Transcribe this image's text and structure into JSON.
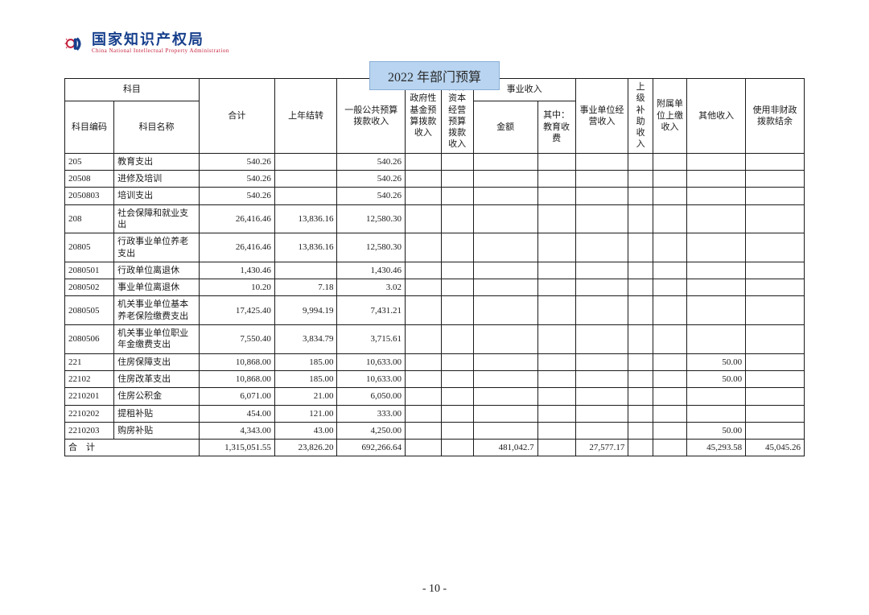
{
  "logo": {
    "cn": "国家知识产权局",
    "en": "China National Intellectual Property Administration",
    "accent_color": "#163f8c",
    "red": "#c41e3a"
  },
  "title": "2022 年部门预算",
  "page_number": "- 10 -",
  "header": {
    "kemu": "科目",
    "kemu_bianma": "科目编码",
    "kemu_mingcheng": "科目名称",
    "heji": "合计",
    "shangnian_jiezhuang": "上年结转",
    "yiban_gonggong": "一般公共预算拨款收入",
    "zhengfuxing": "政府性基金预算拨款收入",
    "guoyou_ziben": "国有资本经营预算拨款收入",
    "shiye_shouru": "事业收入",
    "jine": "金额",
    "qizhong_jiaoyu": "其中：教育收费",
    "shiye_danwei": "事业单位经营收入",
    "shangji_buzhu": "上级补助收入",
    "fushu_danwei": "附属单位上缴收入",
    "qita_shouru": "其他收入",
    "shiyong_feicaizheng": "使用非财政拨款结余"
  },
  "rows": [
    {
      "code": "205",
      "name": "教育支出",
      "heji": "540.26",
      "sn": "",
      "yb": "540.26",
      "zf": "",
      "gy": "",
      "je": "",
      "jy": "",
      "sd": "",
      "sj": "",
      "fs": "",
      "qt": "",
      "sy": ""
    },
    {
      "code": "20508",
      "name": "进修及培训",
      "heji": "540.26",
      "sn": "",
      "yb": "540.26",
      "zf": "",
      "gy": "",
      "je": "",
      "jy": "",
      "sd": "",
      "sj": "",
      "fs": "",
      "qt": "",
      "sy": ""
    },
    {
      "code": "2050803",
      "name": "培训支出",
      "heji": "540.26",
      "sn": "",
      "yb": "540.26",
      "zf": "",
      "gy": "",
      "je": "",
      "jy": "",
      "sd": "",
      "sj": "",
      "fs": "",
      "qt": "",
      "sy": ""
    },
    {
      "code": "208",
      "name": "社会保障和就业支出",
      "heji": "26,416.46",
      "sn": "13,836.16",
      "yb": "12,580.30",
      "zf": "",
      "gy": "",
      "je": "",
      "jy": "",
      "sd": "",
      "sj": "",
      "fs": "",
      "qt": "",
      "sy": ""
    },
    {
      "code": "20805",
      "name": "行政事业单位养老支出",
      "heji": "26,416.46",
      "sn": "13,836.16",
      "yb": "12,580.30",
      "zf": "",
      "gy": "",
      "je": "",
      "jy": "",
      "sd": "",
      "sj": "",
      "fs": "",
      "qt": "",
      "sy": ""
    },
    {
      "code": "2080501",
      "name": "行政单位离退休",
      "heji": "1,430.46",
      "sn": "",
      "yb": "1,430.46",
      "zf": "",
      "gy": "",
      "je": "",
      "jy": "",
      "sd": "",
      "sj": "",
      "fs": "",
      "qt": "",
      "sy": ""
    },
    {
      "code": "2080502",
      "name": "事业单位离退休",
      "heji": "10.20",
      "sn": "7.18",
      "yb": "3.02",
      "zf": "",
      "gy": "",
      "je": "",
      "jy": "",
      "sd": "",
      "sj": "",
      "fs": "",
      "qt": "",
      "sy": ""
    },
    {
      "code": "2080505",
      "name": "机关事业单位基本养老保险缴费支出",
      "heji": "17,425.40",
      "sn": "9,994.19",
      "yb": "7,431.21",
      "zf": "",
      "gy": "",
      "je": "",
      "jy": "",
      "sd": "",
      "sj": "",
      "fs": "",
      "qt": "",
      "sy": ""
    },
    {
      "code": "2080506",
      "name": "机关事业单位职业年金缴费支出",
      "heji": "7,550.40",
      "sn": "3,834.79",
      "yb": "3,715.61",
      "zf": "",
      "gy": "",
      "je": "",
      "jy": "",
      "sd": "",
      "sj": "",
      "fs": "",
      "qt": "",
      "sy": ""
    },
    {
      "code": "221",
      "name": "住房保障支出",
      "heji": "10,868.00",
      "sn": "185.00",
      "yb": "10,633.00",
      "zf": "",
      "gy": "",
      "je": "",
      "jy": "",
      "sd": "",
      "sj": "",
      "fs": "",
      "qt": "50.00",
      "sy": ""
    },
    {
      "code": "22102",
      "name": "住房改革支出",
      "heji": "10,868.00",
      "sn": "185.00",
      "yb": "10,633.00",
      "zf": "",
      "gy": "",
      "je": "",
      "jy": "",
      "sd": "",
      "sj": "",
      "fs": "",
      "qt": "50.00",
      "sy": ""
    },
    {
      "code": "2210201",
      "name": "住房公积金",
      "heji": "6,071.00",
      "sn": "21.00",
      "yb": "6,050.00",
      "zf": "",
      "gy": "",
      "je": "",
      "jy": "",
      "sd": "",
      "sj": "",
      "fs": "",
      "qt": "",
      "sy": ""
    },
    {
      "code": "2210202",
      "name": "提租补贴",
      "heji": "454.00",
      "sn": "121.00",
      "yb": "333.00",
      "zf": "",
      "gy": "",
      "je": "",
      "jy": "",
      "sd": "",
      "sj": "",
      "fs": "",
      "qt": "",
      "sy": ""
    },
    {
      "code": "2210203",
      "name": "购房补贴",
      "heji": "4,343.00",
      "sn": "43.00",
      "yb": "4,250.00",
      "zf": "",
      "gy": "",
      "je": "",
      "jy": "",
      "sd": "",
      "sj": "",
      "fs": "",
      "qt": "50.00",
      "sy": ""
    }
  ],
  "total_row": {
    "label": "合　计",
    "heji": "1,315,051.55",
    "sn": "23,826.20",
    "yb": "692,266.64",
    "zf": "",
    "gy": "",
    "je": "481,042.7",
    "jy": "",
    "sd": "27,577.17",
    "sj": "",
    "fs": "",
    "qt": "45,293.58",
    "sy": "45,045.26"
  }
}
